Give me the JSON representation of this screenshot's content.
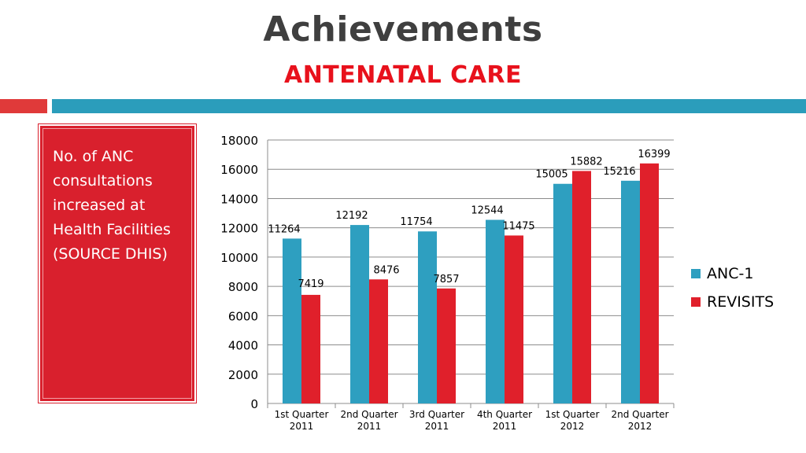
{
  "slide": {
    "title": "Achievements",
    "subtitle": "ANTENATAL CARE",
    "side_text": "No. of ANC consultations increased at Health Facilities (SOURCE DHIS)"
  },
  "colors": {
    "title": "#3f3f3f",
    "subtitle": "#e8111c",
    "accent_red": "#e03a3a",
    "accent_teal": "#2b9dbb",
    "sidebox": "#d9202d"
  },
  "chart_data": {
    "type": "bar",
    "title": "",
    "xlabel": "",
    "ylabel": "",
    "ylim": [
      0,
      18000
    ],
    "yticks": [
      0,
      2000,
      4000,
      6000,
      8000,
      10000,
      12000,
      14000,
      16000,
      18000
    ],
    "grid": true,
    "legend": "right",
    "categories": [
      [
        "1st Quarter",
        "2011"
      ],
      [
        "2nd Quarter",
        "2011"
      ],
      [
        "3rd Quarter",
        "2011"
      ],
      [
        "4th Quarter",
        "2011"
      ],
      [
        "1st Quarter",
        "2012"
      ],
      [
        "2nd Quarter",
        "2012"
      ]
    ],
    "series": [
      {
        "name": "ANC-1",
        "color": "#2e9fc0",
        "values": [
          11264,
          12192,
          11754,
          12544,
          15005,
          15216
        ]
      },
      {
        "name": "REVISITS",
        "color": "#e0202b",
        "values": [
          7419,
          8476,
          7857,
          11475,
          15882,
          16399
        ]
      }
    ]
  }
}
